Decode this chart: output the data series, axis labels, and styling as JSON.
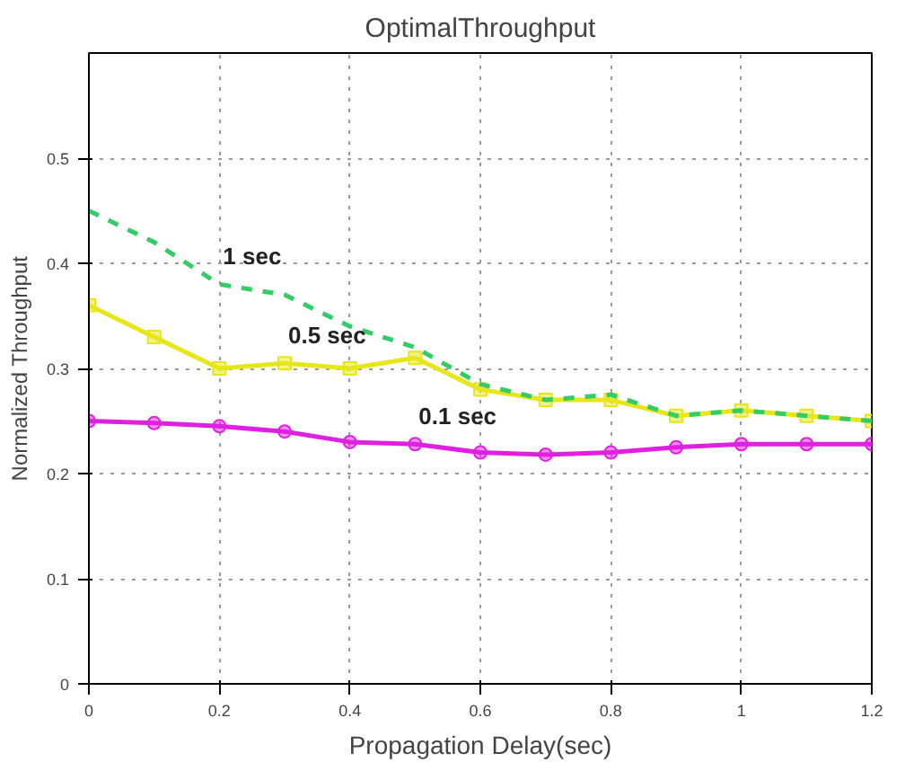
{
  "chart_data": {
    "type": "line",
    "title": "OptimalThroughput",
    "xlabel": "Propagation Delay(sec)",
    "ylabel": "Normalized Throughput",
    "x": [
      0,
      0.1,
      0.2,
      0.3,
      0.4,
      0.5,
      0.6,
      0.7,
      0.8,
      0.9,
      1.0,
      1.1,
      1.2
    ],
    "series": [
      {
        "name": "1 sec",
        "color": "#33cc66",
        "line_style": "dashed",
        "marker": "none",
        "values": [
          0.45,
          0.42,
          0.38,
          0.37,
          0.34,
          0.32,
          0.285,
          0.27,
          0.275,
          0.255,
          0.26,
          0.255,
          0.25
        ]
      },
      {
        "name": "0.5 sec",
        "color": "#e6e619",
        "line_style": "solid",
        "marker": "square",
        "values": [
          0.36,
          0.33,
          0.3,
          0.305,
          0.3,
          0.31,
          0.28,
          0.27,
          0.27,
          0.255,
          0.26,
          0.255,
          0.25
        ]
      },
      {
        "name": "0.1 sec",
        "color": "#e020e0",
        "line_style": "solid",
        "marker": "circle",
        "values": [
          0.25,
          0.248,
          0.245,
          0.24,
          0.23,
          0.228,
          0.22,
          0.218,
          0.22,
          0.225,
          0.228,
          0.228,
          0.228
        ]
      }
    ],
    "xlim": [
      0,
      1.2
    ],
    "ylim": [
      0,
      0.6
    ],
    "xticks": [
      0,
      0.2,
      0.4,
      0.6,
      0.8,
      1,
      1.2
    ],
    "yticks": [
      0,
      0.1,
      0.2,
      0.3,
      0.4,
      0.5
    ],
    "grid": true
  }
}
